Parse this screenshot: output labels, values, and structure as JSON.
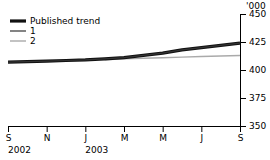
{
  "chart_data": {
    "type": "line",
    "y_label": "'000",
    "x": [
      0,
      1,
      2,
      3,
      4,
      5,
      6,
      7,
      8,
      9,
      10,
      11,
      12
    ],
    "xlim": [
      0,
      12
    ],
    "xticks": [
      {
        "value": 0,
        "label": "S"
      },
      {
        "value": 2,
        "label": "N"
      },
      {
        "value": 4,
        "label": "J"
      },
      {
        "value": 6,
        "label": "M"
      },
      {
        "value": 8,
        "label": "M"
      },
      {
        "value": 10,
        "label": "J"
      },
      {
        "value": 12,
        "label": "S"
      }
    ],
    "ylim": [
      350,
      450
    ],
    "yticks": [
      350,
      375,
      400,
      425,
      450
    ],
    "legend": "upper left",
    "grid": false,
    "series": [
      {
        "name": "Published trend",
        "color": "#111111",
        "values": [
          407,
          407.5,
          408,
          408.5,
          409,
          410,
          411,
          413,
          415,
          418,
          420,
          422,
          424
        ]
      },
      {
        "name": "1",
        "color": "#333333",
        "values": [
          407,
          407.5,
          408,
          408.5,
          409,
          410,
          411,
          413,
          415,
          418,
          420,
          422,
          424
        ]
      },
      {
        "name": "2",
        "color": "#aaaaaa",
        "values": [
          null,
          null,
          null,
          null,
          null,
          409,
          410,
          410.5,
          411,
          411.5,
          412,
          412.5,
          413
        ]
      }
    ],
    "annotations": [
      {
        "text": "2002",
        "x": 0
      },
      {
        "text": "2003",
        "x": 4
      }
    ]
  }
}
